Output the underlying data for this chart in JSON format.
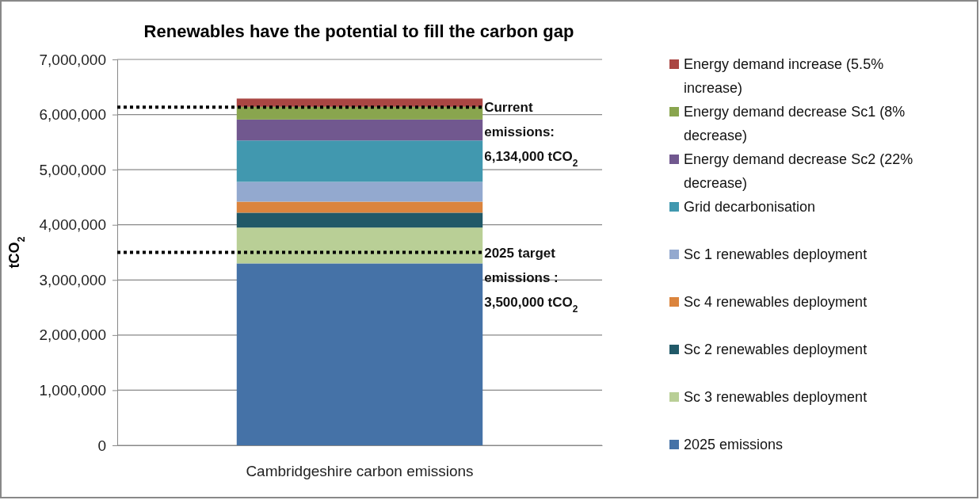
{
  "chart_data": {
    "type": "bar",
    "stacked": true,
    "title": "Renewables have the potential to fill the carbon gap",
    "ylabel": "tCO$_{2}$",
    "categories": [
      "Cambridgeshire carbon emissions"
    ],
    "series": [
      {
        "name": "2025 emissions",
        "color": "#4572a7",
        "values": [
          3300000
        ]
      },
      {
        "name": "Sc 3 renewables deployment",
        "color": "#b9cf96",
        "values": [
          650000
        ]
      },
      {
        "name": "Sc 2 renewables deployment",
        "color": "#215968",
        "values": [
          270000
        ]
      },
      {
        "name": "Sc 4 renewables deployment",
        "color": "#db843d",
        "values": [
          200000
        ]
      },
      {
        "name": "Sc 1 renewables deployment",
        "color": "#93a9cf",
        "values": [
          360000
        ]
      },
      {
        "name": "Grid decarbonisation",
        "color": "#4198af",
        "values": [
          750000
        ]
      },
      {
        "name": "Energy demand decrease Sc2 (22% decrease)",
        "color": "#71588f",
        "values": [
          380000
        ]
      },
      {
        "name": "Energy demand decrease Sc1 (8% decrease)",
        "color": "#89a54e",
        "values": [
          230000
        ]
      },
      {
        "name": "Energy demand increase (5.5% increase)",
        "color": "#aa4643",
        "values": [
          150000
        ]
      }
    ],
    "ylim": [
      0,
      7000000
    ],
    "yticks": [
      {
        "value": 0,
        "label": "0"
      },
      {
        "value": 1000000,
        "label": "1,000,000"
      },
      {
        "value": 2000000,
        "label": "2,000,000"
      },
      {
        "value": 3000000,
        "label": "3,000,000"
      },
      {
        "value": 4000000,
        "label": "4,000,000"
      },
      {
        "value": 5000000,
        "label": "5,000,000"
      },
      {
        "value": 6000000,
        "label": "6,000,000"
      },
      {
        "value": 7000000,
        "label": "7,000,000"
      }
    ],
    "grid": "y",
    "legend": "right",
    "ref_lines": [
      {
        "axis": "y",
        "value": 6134000,
        "label": "Current emissions: 6,134,000 tCO$_{2}$",
        "color": "#000000",
        "line_style": "dotted"
      },
      {
        "axis": "y",
        "value": 3500000,
        "label": "2025 target emissions : 3,500,000 tCO$_{2}$",
        "color": "#000000",
        "line_style": "dotted"
      }
    ]
  }
}
